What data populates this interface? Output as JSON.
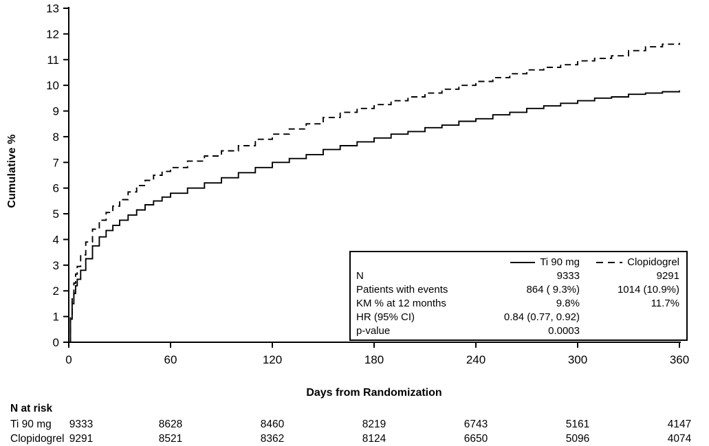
{
  "chart_data": {
    "type": "line",
    "title": "",
    "xlabel": "Days from Randomization",
    "ylabel": "Cumulative %",
    "xlim": [
      0,
      360
    ],
    "ylim": [
      0,
      13
    ],
    "x_ticks": [
      0,
      60,
      120,
      180,
      240,
      300,
      360
    ],
    "y_ticks": [
      0,
      1,
      2,
      3,
      4,
      5,
      6,
      7,
      8,
      9,
      10,
      11,
      12,
      13
    ],
    "grid": false,
    "legend_position": "lower-right-box",
    "series": [
      {
        "name": "Ti 90 mg",
        "style": "solid",
        "color": "#000000",
        "points": [
          [
            0,
            0
          ],
          [
            1,
            0.9
          ],
          [
            2,
            1.5
          ],
          [
            3,
            1.9
          ],
          [
            4,
            2.2
          ],
          [
            5,
            2.45
          ],
          [
            7,
            2.8
          ],
          [
            10,
            3.25
          ],
          [
            14,
            3.75
          ],
          [
            18,
            4.1
          ],
          [
            22,
            4.35
          ],
          [
            26,
            4.55
          ],
          [
            30,
            4.75
          ],
          [
            35,
            4.95
          ],
          [
            40,
            5.15
          ],
          [
            45,
            5.35
          ],
          [
            50,
            5.5
          ],
          [
            55,
            5.65
          ],
          [
            60,
            5.8
          ],
          [
            70,
            6.0
          ],
          [
            80,
            6.2
          ],
          [
            90,
            6.4
          ],
          [
            100,
            6.6
          ],
          [
            110,
            6.8
          ],
          [
            120,
            7.0
          ],
          [
            130,
            7.15
          ],
          [
            140,
            7.3
          ],
          [
            150,
            7.5
          ],
          [
            160,
            7.65
          ],
          [
            170,
            7.8
          ],
          [
            180,
            7.95
          ],
          [
            190,
            8.1
          ],
          [
            200,
            8.2
          ],
          [
            210,
            8.35
          ],
          [
            220,
            8.45
          ],
          [
            230,
            8.6
          ],
          [
            240,
            8.7
          ],
          [
            250,
            8.85
          ],
          [
            260,
            8.95
          ],
          [
            270,
            9.1
          ],
          [
            280,
            9.2
          ],
          [
            290,
            9.3
          ],
          [
            300,
            9.4
          ],
          [
            310,
            9.5
          ],
          [
            320,
            9.55
          ],
          [
            330,
            9.65
          ],
          [
            340,
            9.7
          ],
          [
            350,
            9.75
          ],
          [
            360,
            9.8
          ]
        ]
      },
      {
        "name": "Clopidogrel",
        "style": "dashed",
        "color": "#000000",
        "points": [
          [
            0,
            0
          ],
          [
            1,
            1.1
          ],
          [
            2,
            1.8
          ],
          [
            3,
            2.3
          ],
          [
            4,
            2.65
          ],
          [
            5,
            2.95
          ],
          [
            7,
            3.4
          ],
          [
            10,
            3.9
          ],
          [
            14,
            4.4
          ],
          [
            18,
            4.75
          ],
          [
            22,
            5.05
          ],
          [
            26,
            5.3
          ],
          [
            30,
            5.55
          ],
          [
            35,
            5.85
          ],
          [
            40,
            6.1
          ],
          [
            45,
            6.3
          ],
          [
            50,
            6.5
          ],
          [
            55,
            6.65
          ],
          [
            60,
            6.8
          ],
          [
            70,
            7.05
          ],
          [
            80,
            7.25
          ],
          [
            90,
            7.45
          ],
          [
            100,
            7.65
          ],
          [
            110,
            7.9
          ],
          [
            120,
            8.1
          ],
          [
            130,
            8.3
          ],
          [
            140,
            8.5
          ],
          [
            150,
            8.75
          ],
          [
            160,
            8.95
          ],
          [
            170,
            9.1
          ],
          [
            180,
            9.25
          ],
          [
            190,
            9.4
          ],
          [
            200,
            9.55
          ],
          [
            210,
            9.7
          ],
          [
            220,
            9.85
          ],
          [
            230,
            10.0
          ],
          [
            240,
            10.15
          ],
          [
            250,
            10.3
          ],
          [
            260,
            10.45
          ],
          [
            270,
            10.6
          ],
          [
            280,
            10.7
          ],
          [
            290,
            10.8
          ],
          [
            300,
            10.95
          ],
          [
            310,
            11.05
          ],
          [
            320,
            11.15
          ],
          [
            330,
            11.35
          ],
          [
            340,
            11.5
          ],
          [
            350,
            11.6
          ],
          [
            360,
            11.65
          ]
        ]
      }
    ]
  },
  "legend": {
    "rows": [
      {
        "label": "N",
        "v1": "9333",
        "v2": "9291"
      },
      {
        "label": "Patients with events",
        "v1": "864 ( 9.3%)",
        "v2": "1014 (10.9%)"
      },
      {
        "label": "KM % at 12 months",
        "v1": "9.8%",
        "v2": "11.7%"
      },
      {
        "label": "HR (95% CI)",
        "v1": "0.84 (0.77, 0.92)",
        "v2": ""
      },
      {
        "label": "p-value",
        "v1": "0.0003",
        "v2": ""
      }
    ]
  },
  "risk_table": {
    "title": "N at risk",
    "rows": [
      {
        "label": "Ti 90 mg",
        "values": [
          "9333",
          "8628",
          "8460",
          "8219",
          "6743",
          "5161",
          "4147"
        ]
      },
      {
        "label": "Clopidogrel",
        "values": [
          "9291",
          "8521",
          "8362",
          "8124",
          "6650",
          "5096",
          "4074"
        ]
      }
    ]
  }
}
